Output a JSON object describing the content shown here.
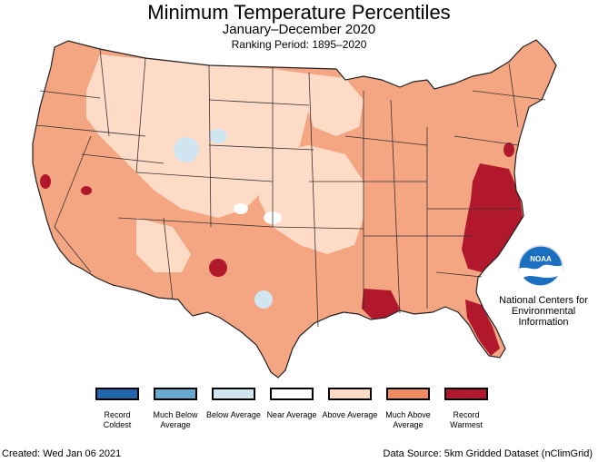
{
  "title": "Minimum Temperature Percentiles",
  "subtitle": "January–December 2020",
  "period": "Ranking Period: 1895–2020",
  "noaa": {
    "logo_text": "NOAA",
    "line1": "National Centers for",
    "line2": "Environmental",
    "line3": "Information"
  },
  "legend": [
    {
      "label": "Record Coldest",
      "color": "#2166ac"
    },
    {
      "label": "Much Below Average",
      "color": "#67a9cf"
    },
    {
      "label": "Below Average",
      "color": "#d1e5f0"
    },
    {
      "label": "Near Average",
      "color": "#ffffff"
    },
    {
      "label": "Above Average",
      "color": "#fddbc7"
    },
    {
      "label": "Much Above Average",
      "color": "#ef8a62"
    },
    {
      "label": "Record Warmest",
      "color": "#b2182b"
    }
  ],
  "footer": {
    "created": "Created: Wed Jan 06 2021",
    "source": "Data Source: 5km Gridded Dataset (nClimGrid)"
  }
}
